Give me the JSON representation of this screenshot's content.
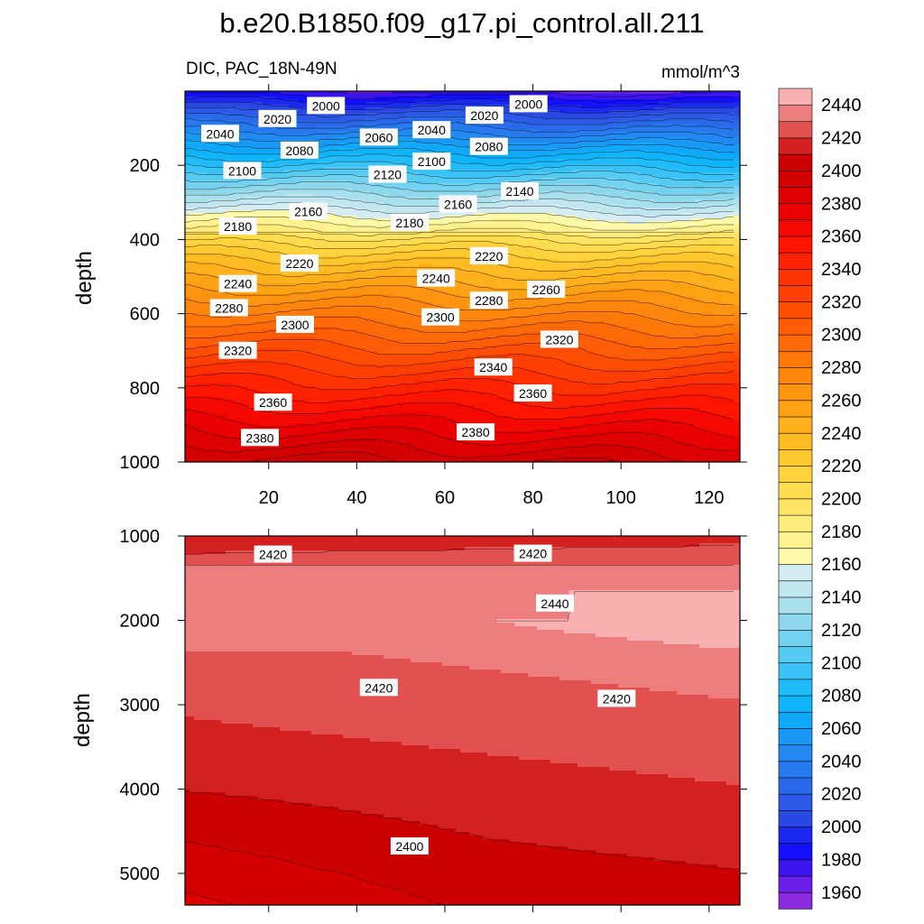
{
  "chart_data": {
    "type": "contour",
    "title": "b.e20.B1850.f09_g17.pi_control.all.211",
    "left_string": "DIC, PAC_18N-49N",
    "units": "mmol/m^3",
    "ylabel": "depth",
    "colorbar": {
      "levels": [
        1960,
        1980,
        2000,
        2020,
        2040,
        2060,
        2080,
        2100,
        2120,
        2140,
        2160,
        2180,
        2200,
        2220,
        2240,
        2260,
        2280,
        2300,
        2320,
        2340,
        2360,
        2380,
        2400,
        2420,
        2440
      ],
      "level_spacing": 10,
      "tick_labels": [
        "1960",
        "1980",
        "2000",
        "2020",
        "2040",
        "2060",
        "2080",
        "2100",
        "2120",
        "2140",
        "2160",
        "2180",
        "2200",
        "2220",
        "2240",
        "2260",
        "2280",
        "2300",
        "2320",
        "2340",
        "2360",
        "2380",
        "2400",
        "2420",
        "2440"
      ],
      "colors": [
        "#8a2be2",
        "#6a1ee8",
        "#3c14f0",
        "#1410ff",
        "#1a28f0",
        "#2a48e2",
        "#2c5ae6",
        "#2a6aea",
        "#2878ee",
        "#2288f2",
        "#1a98f6",
        "#10a8f8",
        "#10b4fa",
        "#20bcfa",
        "#38c2f6",
        "#55caf2",
        "#72d2f0",
        "#8ed8ee",
        "#a8e0ee",
        "#c0e6f0",
        "#d4ecf4",
        "#fffaaa",
        "#fff290",
        "#ffec7a",
        "#ffe466",
        "#ffdc50",
        "#ffd23e",
        "#ffc82e",
        "#ffbc22",
        "#ffb01a",
        "#ffa214",
        "#ff9410",
        "#ff860c",
        "#ff780a",
        "#ff6a08",
        "#ff5c06",
        "#ff4e04",
        "#ff4002",
        "#ff3200",
        "#ff2200",
        "#ff1400",
        "#f50800",
        "#ea0000",
        "#de0000",
        "#d40000",
        "#cc0000",
        "#d42020",
        "#e25050",
        "#ee7e7e",
        "#f8b0b0"
      ]
    },
    "panels": [
      {
        "name": "upper",
        "xlim": [
          1,
          127
        ],
        "ylim": [
          1000,
          0
        ],
        "x_ticks": [
          20,
          40,
          60,
          80,
          100,
          120
        ],
        "x_tick_labels": [
          "20",
          "40",
          "60",
          "80",
          "100",
          "120"
        ],
        "y_ticks": [
          200,
          400,
          600,
          800,
          1000
        ],
        "y_tick_labels": [
          "200",
          "400",
          "600",
          "800",
          "1000"
        ],
        "contour_labels": [
          {
            "text": "2000",
            "x": 33,
            "y": 40
          },
          {
            "text": "2000",
            "x": 79,
            "y": 35
          },
          {
            "text": "2020",
            "x": 22,
            "y": 75
          },
          {
            "text": "2020",
            "x": 69,
            "y": 66
          },
          {
            "text": "2040",
            "x": 9,
            "y": 115
          },
          {
            "text": "2040",
            "x": 57,
            "y": 105
          },
          {
            "text": "2060",
            "x": 45,
            "y": 125
          },
          {
            "text": "2080",
            "x": 27,
            "y": 160
          },
          {
            "text": "2080",
            "x": 70,
            "y": 150
          },
          {
            "text": "2100",
            "x": 14,
            "y": 215
          },
          {
            "text": "2100",
            "x": 57,
            "y": 190
          },
          {
            "text": "2120",
            "x": 47,
            "y": 225
          },
          {
            "text": "2140",
            "x": 77,
            "y": 270
          },
          {
            "text": "2160",
            "x": 29,
            "y": 325
          },
          {
            "text": "2160",
            "x": 63,
            "y": 305
          },
          {
            "text": "2180",
            "x": 13,
            "y": 365
          },
          {
            "text": "2180",
            "x": 52,
            "y": 355
          },
          {
            "text": "2220",
            "x": 27,
            "y": 465
          },
          {
            "text": "2220",
            "x": 70,
            "y": 445
          },
          {
            "text": "2240",
            "x": 13,
            "y": 520
          },
          {
            "text": "2240",
            "x": 58,
            "y": 505
          },
          {
            "text": "2260",
            "x": 83,
            "y": 535
          },
          {
            "text": "2280",
            "x": 11,
            "y": 585
          },
          {
            "text": "2280",
            "x": 70,
            "y": 565
          },
          {
            "text": "2300",
            "x": 26,
            "y": 630
          },
          {
            "text": "2300",
            "x": 59,
            "y": 610
          },
          {
            "text": "2320",
            "x": 13,
            "y": 700
          },
          {
            "text": "2320",
            "x": 86,
            "y": 670
          },
          {
            "text": "2340",
            "x": 71,
            "y": 745
          },
          {
            "text": "2360",
            "x": 21,
            "y": 840
          },
          {
            "text": "2360",
            "x": 80,
            "y": 815
          },
          {
            "text": "2380",
            "x": 18,
            "y": 935
          },
          {
            "text": "2380",
            "x": 67,
            "y": 920
          }
        ]
      },
      {
        "name": "lower",
        "xlim": [
          1,
          127
        ],
        "ylim": [
          5375,
          1000
        ],
        "y_ticks": [
          1000,
          2000,
          3000,
          4000,
          5000
        ],
        "y_tick_labels": [
          "1000",
          "2000",
          "3000",
          "4000",
          "5000"
        ],
        "contour_labels": [
          {
            "text": "2420",
            "x": 21,
            "y": 1220
          },
          {
            "text": "2420",
            "x": 80,
            "y": 1210
          },
          {
            "text": "2440",
            "x": 85,
            "y": 1800
          },
          {
            "text": "2420",
            "x": 45,
            "y": 2800
          },
          {
            "text": "2420",
            "x": 99,
            "y": 2930
          },
          {
            "text": "2400",
            "x": 52,
            "y": 4680
          }
        ]
      }
    ]
  }
}
